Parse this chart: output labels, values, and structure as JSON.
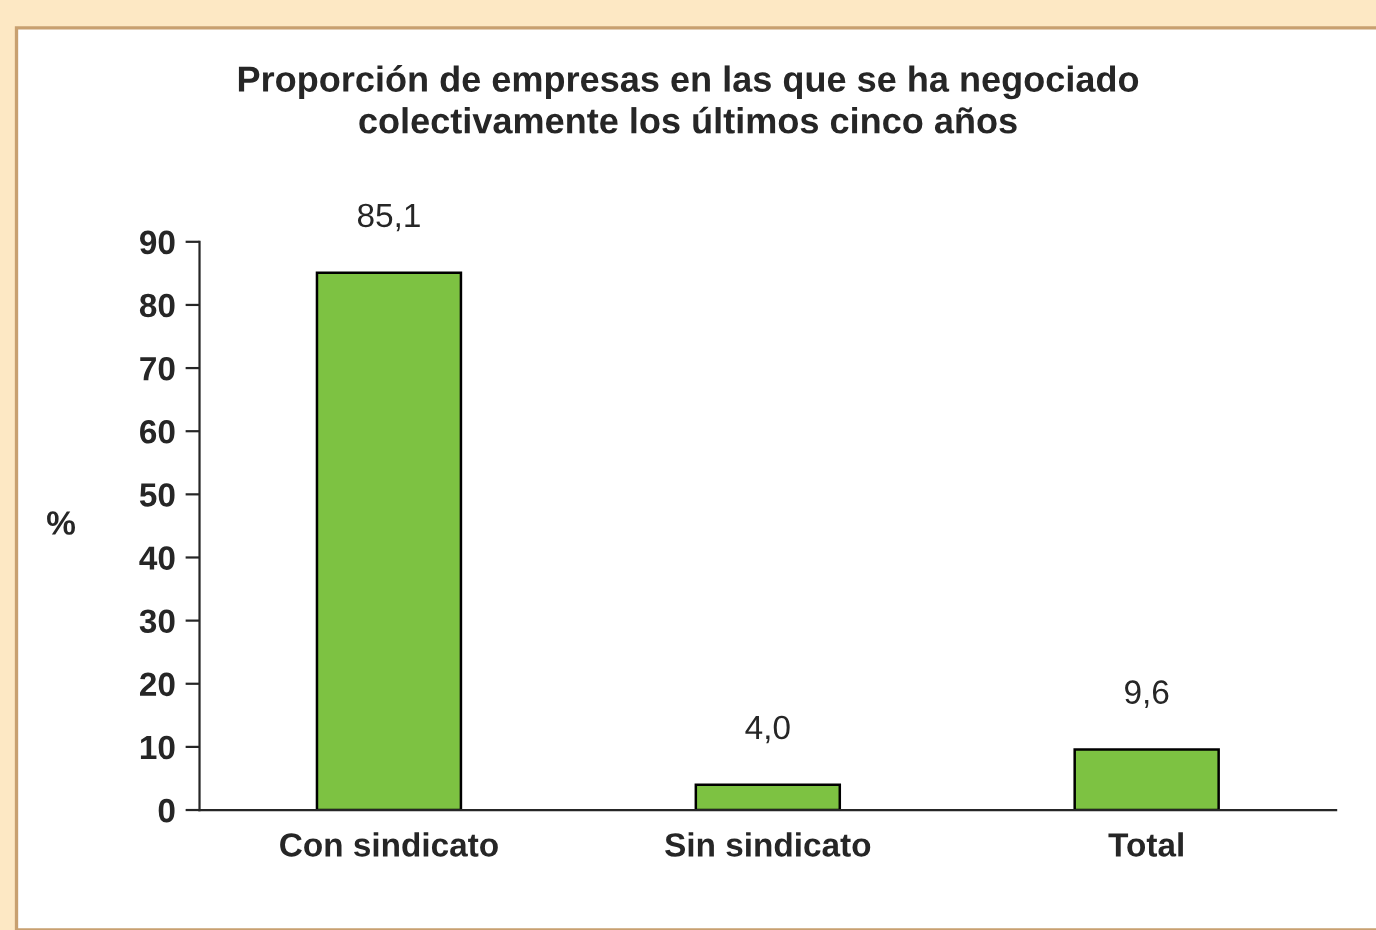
{
  "chart_data": {
    "type": "bar",
    "title": "Proporción de empresas en las que se ha negociado\ncolectivamente los últimos cinco años",
    "ylabel": "%",
    "categories": [
      "Con sindicato",
      "Sin sindicato",
      "Total"
    ],
    "values": [
      85.1,
      4.0,
      9.6
    ],
    "value_labels": [
      "85,1",
      "4,0",
      "9,6"
    ],
    "color": "#7dc242",
    "ylim": [
      0,
      90
    ],
    "yticks": [
      0,
      10,
      20,
      30,
      40,
      50,
      60,
      70,
      80,
      90
    ],
    "grid": false,
    "legend": false
  }
}
